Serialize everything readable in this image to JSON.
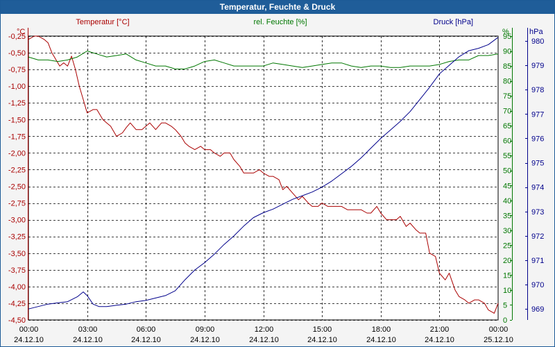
{
  "chart_data": {
    "type": "line",
    "title": "Temperatur, Feuchte & Druck",
    "x_ticks": [
      {
        "time": "00:00",
        "date": "24.12.10"
      },
      {
        "time": "03:00",
        "date": "24.12.10"
      },
      {
        "time": "06:00",
        "date": "24.12.10"
      },
      {
        "time": "09:00",
        "date": "24.12.10"
      },
      {
        "time": "12:00",
        "date": "24.12.10"
      },
      {
        "time": "15:00",
        "date": "24.12.10"
      },
      {
        "time": "18:00",
        "date": "24.12.10"
      },
      {
        "time": "21:00",
        "date": "24.12.10"
      },
      {
        "time": "00:00",
        "date": "25.12.10"
      }
    ],
    "x_range_hours": [
      0,
      24
    ],
    "axes": {
      "temperature": {
        "unit": "°C",
        "label": "Temperatur [°C]",
        "color": "#aa0000",
        "min": -4.5,
        "max": -0.25,
        "ticks": [
          "-0,25",
          "-0,50",
          "-0,75",
          "-1,00",
          "-1,25",
          "-1,50",
          "-1,75",
          "-2,00",
          "-2,25",
          "-2,50",
          "-2,75",
          "-3,00",
          "-3,25",
          "-3,50",
          "-3,75",
          "-4,00",
          "-4,25",
          "-4,50"
        ]
      },
      "humidity": {
        "unit": "%",
        "label": "rel. Feuchte [%]",
        "color": "#007700",
        "min": 0,
        "max": 95,
        "ticks": [
          "95",
          "90",
          "85",
          "80",
          "75",
          "70",
          "65",
          "60",
          "55",
          "50",
          "45",
          "40",
          "35",
          "30",
          "25",
          "20",
          "15",
          "10",
          "5",
          "0"
        ]
      },
      "pressure": {
        "unit": "hPa",
        "label": "Druck [hPa]",
        "color": "#00008b",
        "min": 968.55,
        "max": 980.2,
        "ticks": [
          "980",
          "979",
          "978",
          "977",
          "976",
          "975",
          "974",
          "973",
          "972",
          "971",
          "970",
          "969"
        ]
      }
    },
    "series": [
      {
        "name": "Temperatur",
        "axis": "temperature",
        "color": "#aa0000",
        "x": [
          0,
          0.3,
          0.5,
          0.8,
          1.0,
          1.2,
          1.4,
          1.6,
          1.8,
          2.0,
          2.2,
          2.4,
          2.6,
          2.8,
          3.0,
          3.3,
          3.5,
          3.8,
          4.0,
          4.2,
          4.5,
          4.8,
          5.0,
          5.2,
          5.5,
          5.8,
          6.0,
          6.2,
          6.5,
          6.8,
          7.0,
          7.3,
          7.5,
          7.8,
          8.0,
          8.2,
          8.5,
          8.8,
          9.0,
          9.3,
          9.5,
          9.8,
          10.0,
          10.3,
          10.5,
          10.8,
          11.0,
          11.3,
          11.5,
          11.8,
          12.0,
          12.3,
          12.5,
          12.8,
          13.0,
          13.2,
          13.5,
          13.8,
          14.0,
          14.3,
          14.5,
          14.8,
          15.0,
          15.3,
          15.5,
          15.8,
          16.0,
          16.3,
          16.5,
          16.8,
          17.0,
          17.3,
          17.5,
          17.8,
          18.0,
          18.3,
          18.5,
          18.8,
          19.0,
          19.3,
          19.5,
          19.8,
          20.0,
          20.3,
          20.5,
          20.8,
          21.0,
          21.3,
          21.5,
          21.8,
          22.0,
          22.3,
          22.5,
          22.8,
          23.0,
          23.3,
          23.5,
          23.8,
          24.0
        ],
        "values": [
          -0.3,
          -0.25,
          -0.25,
          -0.3,
          -0.35,
          -0.5,
          -0.6,
          -0.7,
          -0.65,
          -0.7,
          -0.55,
          -0.75,
          -1.0,
          -1.2,
          -1.4,
          -1.35,
          -1.35,
          -1.5,
          -1.55,
          -1.6,
          -1.75,
          -1.7,
          -1.62,
          -1.55,
          -1.65,
          -1.65,
          -1.6,
          -1.55,
          -1.65,
          -1.55,
          -1.55,
          -1.6,
          -1.65,
          -1.75,
          -1.85,
          -1.9,
          -1.95,
          -1.9,
          -1.95,
          -1.95,
          -2.0,
          -2.05,
          -2.0,
          -2.0,
          -2.1,
          -2.2,
          -2.3,
          -2.3,
          -2.3,
          -2.25,
          -2.3,
          -2.35,
          -2.35,
          -2.4,
          -2.55,
          -2.5,
          -2.6,
          -2.7,
          -2.65,
          -2.75,
          -2.8,
          -2.8,
          -2.75,
          -2.8,
          -2.8,
          -2.8,
          -2.8,
          -2.85,
          -2.85,
          -2.85,
          -2.85,
          -2.9,
          -2.9,
          -2.8,
          -2.9,
          -3.0,
          -3.0,
          -3.0,
          -2.95,
          -3.1,
          -3.05,
          -3.15,
          -3.2,
          -3.2,
          -3.5,
          -3.55,
          -3.8,
          -3.9,
          -3.8,
          -4.05,
          -4.15,
          -4.2,
          -4.25,
          -4.2,
          -4.2,
          -4.25,
          -4.35,
          -4.4,
          -4.25
        ]
      },
      {
        "name": "rel. Feuchte",
        "axis": "humidity",
        "color": "#007700",
        "x": [
          0,
          0.5,
          1.0,
          1.5,
          2.0,
          2.5,
          3.0,
          3.5,
          4.0,
          4.5,
          5.0,
          5.5,
          6.0,
          6.5,
          7.0,
          7.5,
          8.0,
          8.5,
          9.0,
          9.5,
          10.0,
          10.5,
          11.0,
          11.5,
          12.0,
          12.5,
          13.0,
          13.5,
          14.0,
          14.5,
          15.0,
          15.5,
          16.0,
          16.5,
          17.0,
          17.5,
          18.0,
          18.5,
          19.0,
          19.5,
          20.0,
          20.5,
          21.0,
          21.5,
          22.0,
          22.5,
          23.0,
          23.5,
          24.0
        ],
        "values": [
          88,
          87,
          87,
          86.5,
          87,
          88,
          90,
          89,
          88,
          88.5,
          89,
          87,
          86,
          85,
          85,
          84,
          84,
          85,
          86.5,
          87,
          86,
          85,
          85,
          85,
          85,
          86,
          85.5,
          85,
          84.5,
          85,
          85.5,
          86,
          86,
          85,
          84.5,
          85,
          85,
          84.5,
          84.5,
          85,
          85,
          85,
          85.5,
          86.5,
          87,
          87,
          88.5,
          88.5,
          89
        ]
      },
      {
        "name": "Druck",
        "axis": "pressure",
        "color": "#00008b",
        "x": [
          0,
          0.5,
          1.0,
          1.5,
          2.0,
          2.5,
          2.8,
          3.0,
          3.3,
          3.6,
          4.0,
          4.5,
          5.0,
          5.5,
          6.0,
          6.5,
          7.0,
          7.5,
          8.0,
          8.5,
          9.0,
          9.5,
          10.0,
          10.5,
          11.0,
          11.5,
          12.0,
          12.5,
          13.0,
          13.5,
          14.0,
          14.5,
          15.0,
          15.5,
          16.0,
          16.5,
          17.0,
          17.5,
          18.0,
          18.5,
          19.0,
          19.5,
          20.0,
          20.5,
          21.0,
          21.5,
          22.0,
          22.5,
          23.0,
          23.5,
          24.0
        ],
        "values": [
          969.0,
          969.1,
          969.2,
          969.25,
          969.3,
          969.5,
          969.7,
          969.55,
          969.2,
          969.1,
          969.1,
          969.15,
          969.2,
          969.3,
          969.35,
          969.45,
          969.55,
          969.75,
          970.2,
          970.6,
          970.9,
          971.25,
          971.65,
          972.0,
          972.4,
          972.75,
          972.95,
          973.1,
          973.3,
          973.5,
          973.65,
          973.8,
          974.0,
          974.25,
          974.55,
          974.85,
          975.2,
          975.6,
          976.0,
          976.35,
          976.7,
          977.1,
          977.6,
          978.1,
          978.65,
          979.0,
          979.35,
          979.6,
          979.7,
          979.85,
          980.15
        ]
      }
    ]
  }
}
